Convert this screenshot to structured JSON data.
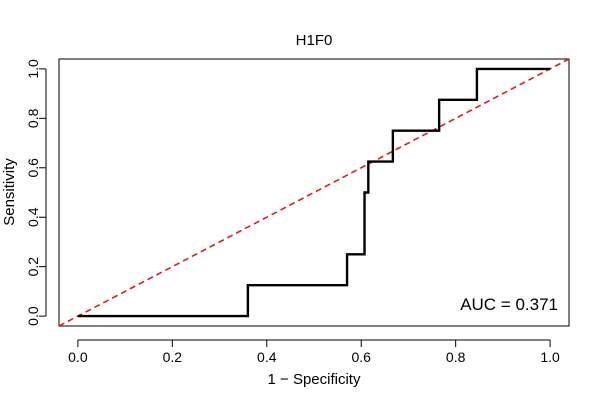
{
  "chart_data": {
    "type": "line",
    "title": "H1F0",
    "xlabel": "1 − Specificity",
    "ylabel": "Sensitivity",
    "xlim": [
      -0.04,
      1.04
    ],
    "ylim": [
      -0.04,
      1.04
    ],
    "x_ticks": [
      "0.0",
      "0.2",
      "0.4",
      "0.6",
      "0.8",
      "1.0"
    ],
    "x_tick_values": [
      0,
      0.2,
      0.4,
      0.6,
      0.8,
      1.0
    ],
    "y_ticks": [
      "0.0",
      "0.2",
      "0.4",
      "0.6",
      "0.8",
      "1.0"
    ],
    "y_tick_values": [
      0,
      0.2,
      0.4,
      0.6,
      0.8,
      1.0
    ],
    "grid": false,
    "series": [
      {
        "color": "#000000",
        "style": "solid",
        "x": [
          0,
          0.36,
          0.36,
          0.57,
          0.57,
          0.607,
          0.607,
          0.615,
          0.615,
          0.667,
          0.667,
          0.765,
          0.765,
          0.845,
          0.845,
          1.0
        ],
        "y": [
          0,
          0,
          0.125,
          0.125,
          0.25,
          0.25,
          0.5,
          0.5,
          0.625,
          0.625,
          0.75,
          0.75,
          0.875,
          0.875,
          1.0,
          1.0
        ]
      },
      {
        "color": "#e31a1c",
        "style": "dashed",
        "x": [
          -0.04,
          1.04
        ],
        "y": [
          -0.04,
          1.04
        ]
      }
    ],
    "annotation": {
      "text": "AUC = 0.371"
    }
  }
}
